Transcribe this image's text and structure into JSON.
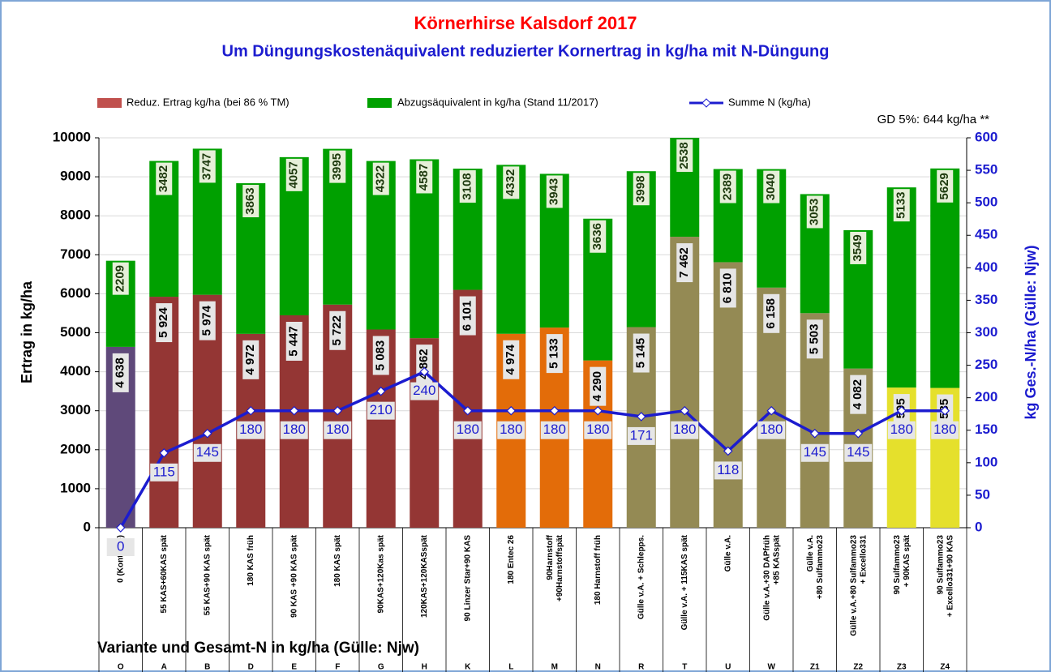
{
  "chart_data": {
    "type": "stacked_bar_line",
    "title": "Körnerhirse  Kalsdorf 2017",
    "subtitle": "Um Düngungskostenäquivalent reduzierter Kornertrag in kg/ha mit  N-Düngung",
    "annotation": "GD 5%:  644 kg/ha **",
    "x_label": "Variante und Gesamt-N  in kg/ha (Gülle: Njw)",
    "y_label": "Ertrag in kg/ha",
    "y2_label": "kg Ges.-N/ha (Gülle: Njw)",
    "categories": [
      "0 (Kontrolle)",
      "55 KAS+60KAS spät",
      "55 KAS+90 KAS spät",
      "180 KAS früh",
      "90 KAS +90 KAS spät",
      "180 KAS spät",
      "90KAS+120Kas spät",
      "120KAS+120KASspät",
      "90 Linzer Star+90 KAS",
      "180 Entec 26",
      "90Harnstoff\n+90Harnstoffspät",
      "180 Harnstoff früh",
      "Gülle v.A. + Schlepps.",
      "Gülle v.A. + 115KAS spät",
      "Gülle v.A.",
      "Gülle v.A.+30 DAPfrüh\n+85 KASspät",
      "Gülle v.A.\n+80 Sulfammo23",
      "Gülle v.A.+80 Sulfammo23\n+ Excello331",
      "90 Sulfammo23\n+ 90KAS spät",
      "90 Sulfammo23\n+ Excello331+90 KAS"
    ],
    "codes": [
      "O",
      "A",
      "B",
      "D",
      "E",
      "F",
      "G",
      "H",
      "K",
      "L",
      "M",
      "N",
      "R",
      "T",
      "U",
      "W",
      "Z1",
      "Z2",
      "Z3",
      "Z4"
    ],
    "series": [
      {
        "name": "Reduz. Ertrag kg/ha (bei 86 % TM)",
        "color": "#c0504d",
        "colors": [
          "#5f497a",
          "#943634",
          "#943634",
          "#943634",
          "#943634",
          "#943634",
          "#943634",
          "#943634",
          "#943634",
          "#e36c09",
          "#e36c09",
          "#e36c09",
          "#948a54",
          "#948a54",
          "#948a54",
          "#948a54",
          "#948a54",
          "#948a54",
          "#e5e02c",
          "#e5e02c"
        ],
        "values": [
          4638,
          5924,
          5974,
          4972,
          5447,
          5722,
          5083,
          4862,
          6101,
          4974,
          5133,
          4290,
          5145,
          7462,
          6810,
          6158,
          5503,
          4082,
          3595,
          3585
        ],
        "value_labels": [
          "4 638",
          "5 924",
          "5 974",
          "4 972",
          "5 447",
          "5 722",
          "5 083",
          "4 862",
          "6 101",
          "4 974",
          "5 133",
          "4 290",
          "5 145",
          "7 462",
          "6 810",
          "6 158",
          "5 503",
          "4 082",
          "3 595",
          "3 585"
        ]
      },
      {
        "name": "Abzugsäquivalent in kg/ha (Stand 11/2017)",
        "color": "#00a000",
        "values": [
          2209,
          3482,
          3747,
          3863,
          4057,
          3995,
          4322,
          4587,
          3108,
          4332,
          3943,
          3636,
          3998,
          2538,
          2389,
          3040,
          3053,
          3549,
          5133,
          5629
        ]
      },
      {
        "name": "Summe N (kg/ha)",
        "color": "#1c1ccf",
        "axis": "y2",
        "values": [
          0,
          115,
          145,
          180,
          180,
          180,
          210,
          240,
          180,
          180,
          180,
          180,
          171,
          180,
          118,
          180,
          145,
          145,
          180,
          180
        ]
      }
    ],
    "ylim": [
      0,
      10000
    ],
    "yticks": [
      0,
      1000,
      2000,
      3000,
      4000,
      5000,
      6000,
      7000,
      8000,
      9000,
      10000
    ],
    "y2lim": [
      0,
      600
    ],
    "y2ticks": [
      0,
      50,
      100,
      150,
      200,
      250,
      300,
      350,
      400,
      450,
      500,
      550,
      600
    ],
    "grid": true
  }
}
